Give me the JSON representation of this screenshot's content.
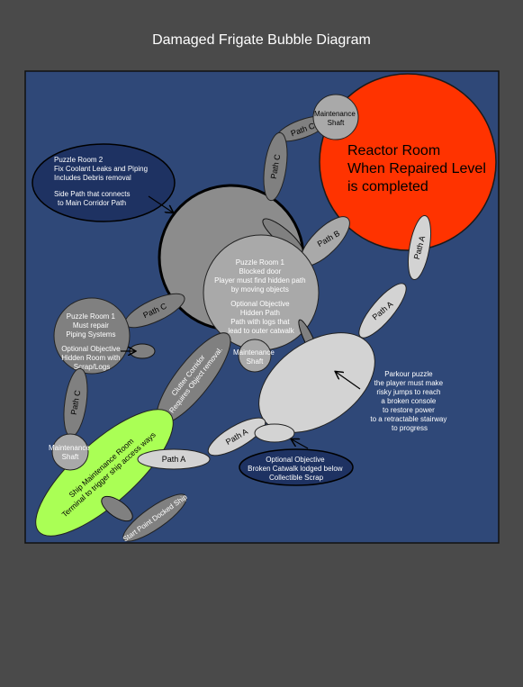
{
  "title": "Damaged Frigate Bubble Diagram",
  "colors": {
    "page_bg": "#4a4a4a",
    "canvas_bg": "#2f4878",
    "reactor": "#ff3300",
    "maintenance_room": "#aaff55",
    "dark_gray": "#808080",
    "mid_gray": "#a9a9a9",
    "light_gray": "#d3d3d3",
    "info_bubble": "#1e3262"
  },
  "nodes": {
    "reactor_room": [
      "Reactor Room",
      "When Repaired Level",
      "is completed"
    ],
    "maintenance_shaft_top": [
      "Maintenance",
      "Shaft"
    ],
    "puzzle_room_2": [
      "Puzzle Room 2",
      "Fix Coolant Leaks and Piping",
      "Includes Debris removal",
      "",
      "Side Path that connects",
      "to Main Corridor Path"
    ],
    "puzzle_room_1_center": [
      "Puzzle Room 1",
      "Blocked door",
      "Player must find hidden path",
      "by moving objects",
      "",
      "Optional Objective",
      "Hidden Path",
      "Path with logs that",
      "lead to outer catwalk"
    ],
    "puzzle_room_1_left": [
      "Puzzle Room 1",
      "Must repair",
      "Piping Systems",
      "",
      "Optional Objective",
      "Hidden Room with",
      "Scrap/Logs"
    ],
    "maintenance_shaft_mid": [
      "Maintenance",
      "Shaft"
    ],
    "maintenance_shaft_left": [
      "Maintenance",
      "Shaft"
    ],
    "parkour_puzzle": [
      "Parkour puzzle",
      "the player must make",
      "risky jumps to reach",
      "a broken console",
      "to restore power",
      "to a retractable stairway",
      "to progress"
    ],
    "optional_catwalk": [
      "Optional Objective",
      "Broken Catwalk lodged below",
      "Collectible Scrap"
    ],
    "clutter_corridor": [
      "Clutter Corridor",
      "Requires Object removal."
    ],
    "ship_maintenance_room": [
      "Ship Maintenance Room",
      "Terminal to trigger ship access ways"
    ],
    "start_point": "Start Point Docked Ship"
  },
  "paths": {
    "path_c_top": "Path C",
    "path_c_vertical": "Path C",
    "path_b": "Path B",
    "path_a_right": "Path A",
    "path_a_mid": "Path A",
    "path_c_left": "Path C",
    "path_c_bottom_left": "Path C",
    "path_a_lower": "Path A",
    "path_a_bottom": "Path A"
  }
}
